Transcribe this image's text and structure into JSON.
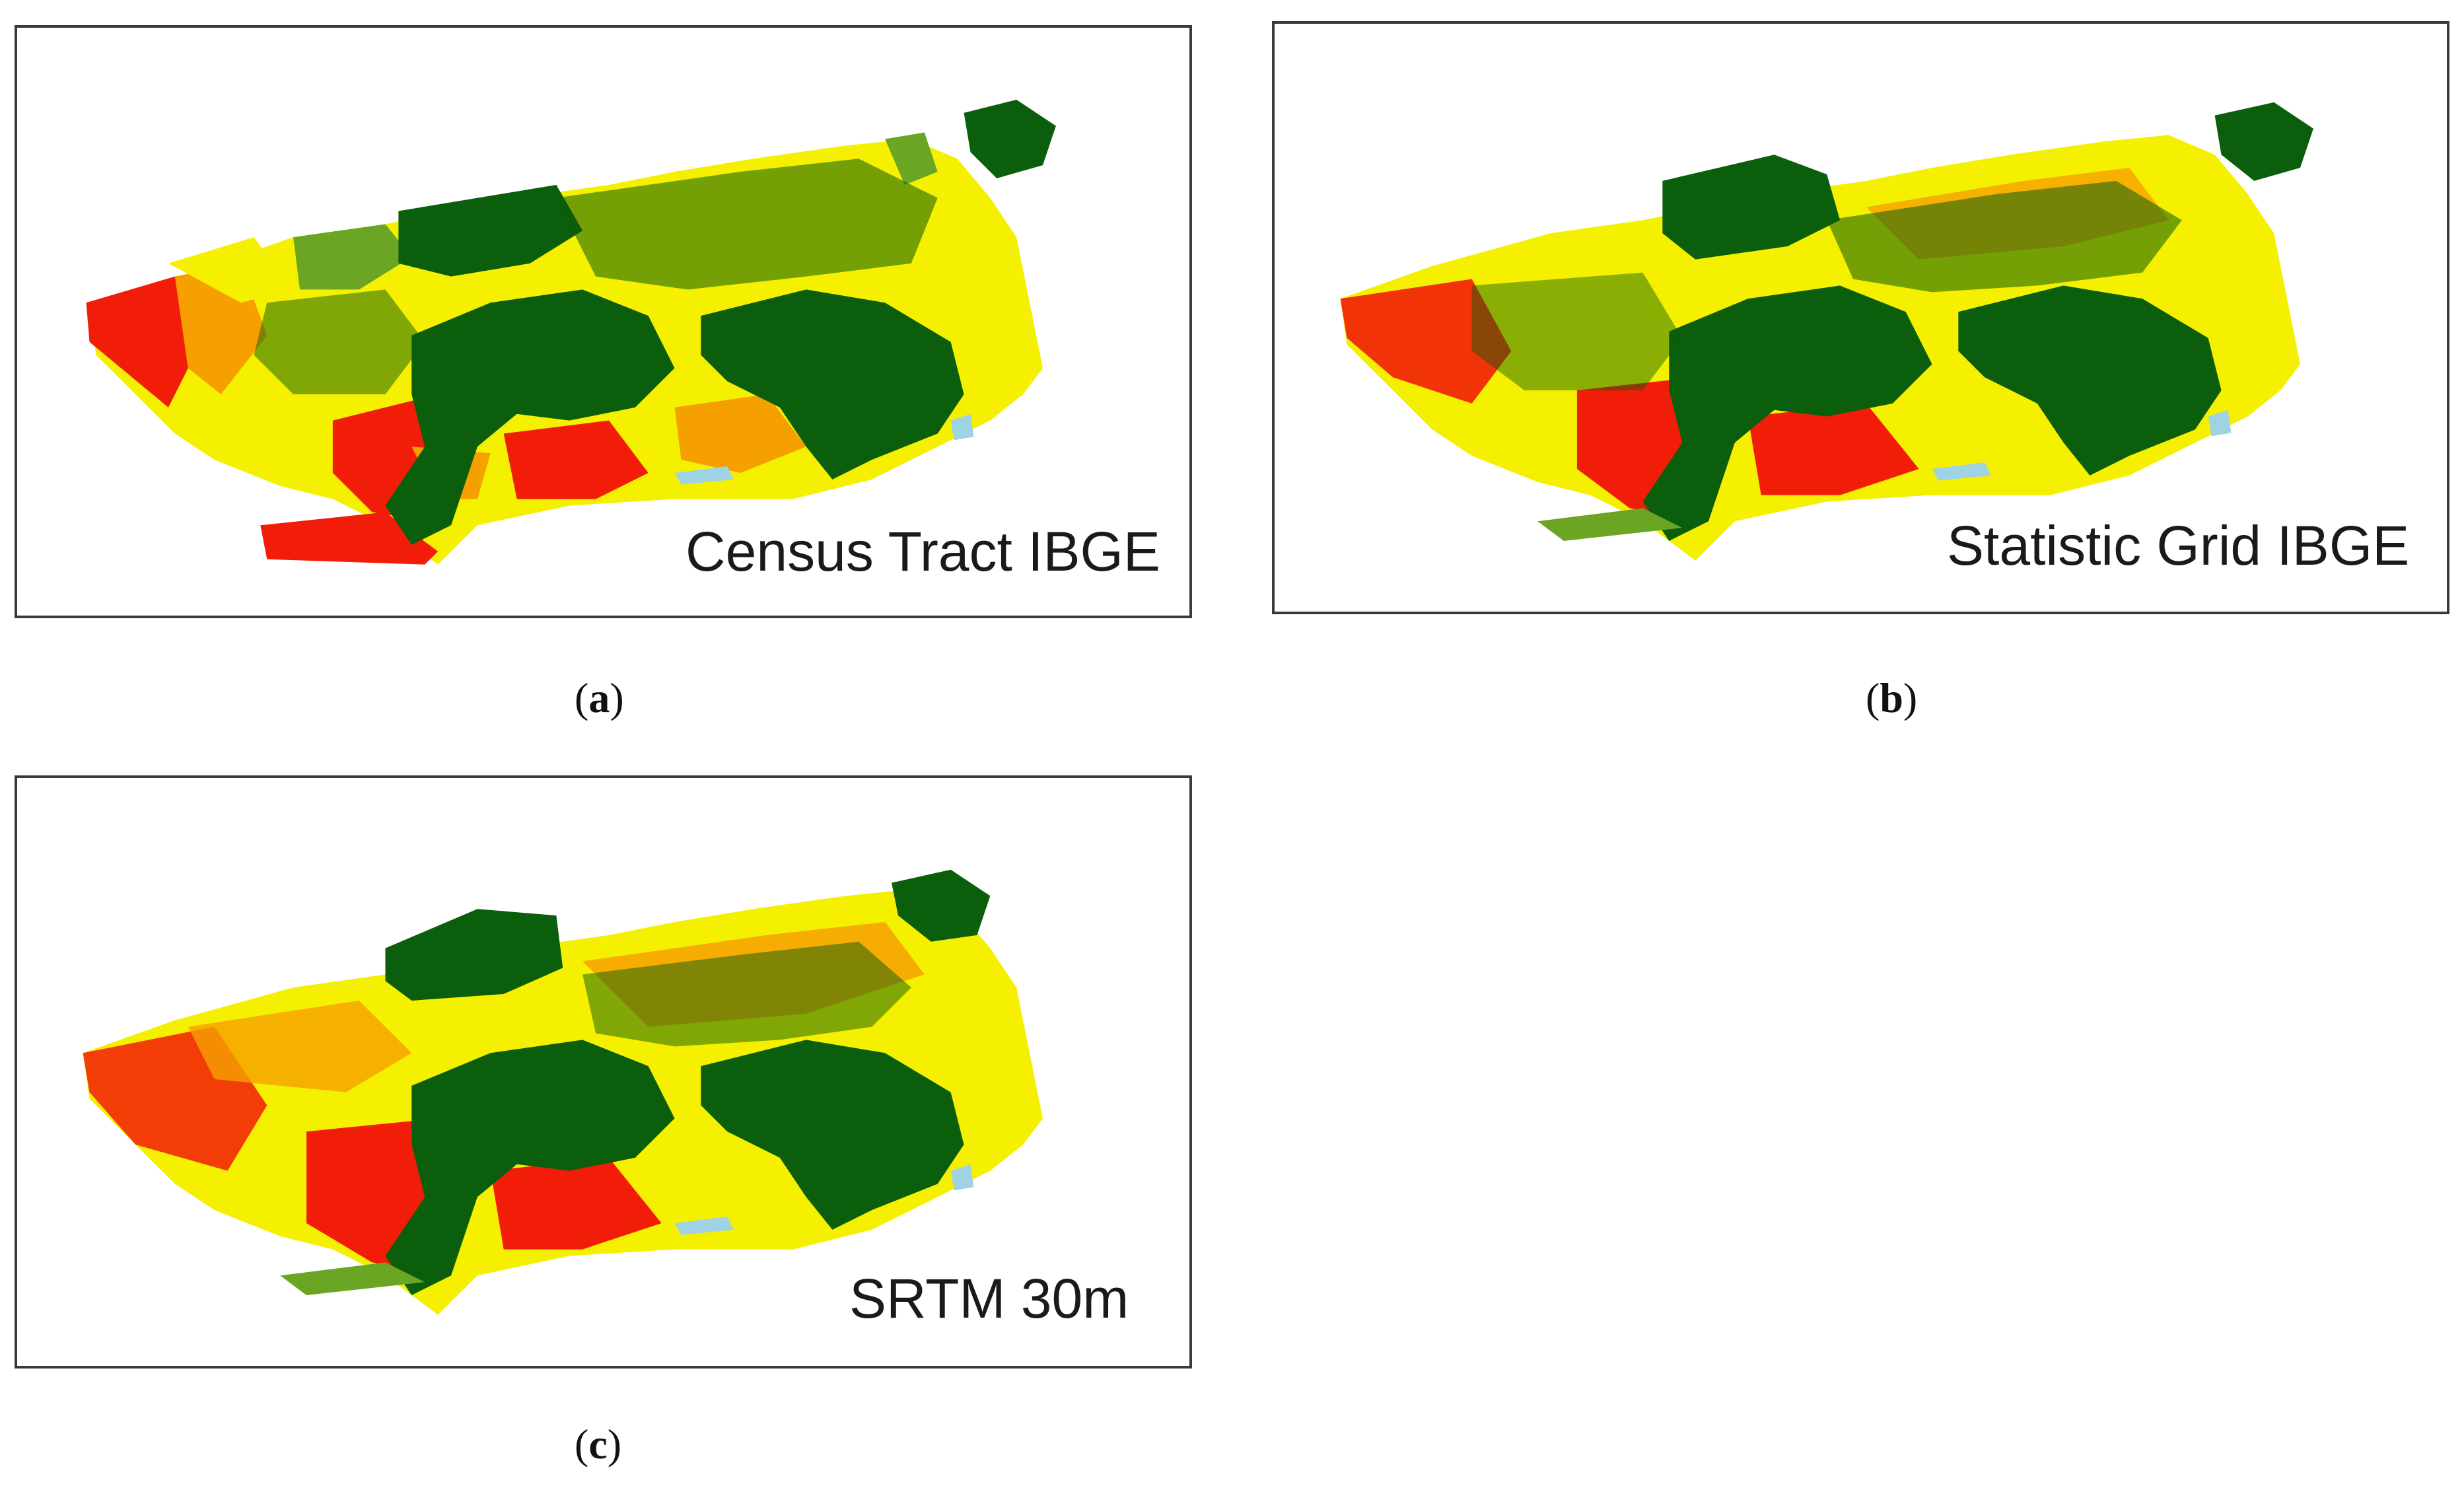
{
  "panels": [
    {
      "id": "a",
      "map_label": "Census Tract IBGE",
      "caption_letter": "a"
    },
    {
      "id": "b",
      "map_label": "Statistic Grid IBGE",
      "caption_letter": "b"
    },
    {
      "id": "c",
      "map_label": "SRTM 30m",
      "caption_letter": "c"
    }
  ],
  "colors": {
    "dark_green": "#0b5e0b",
    "light_green": "#6aa524",
    "yellow": "#f4f000",
    "orange": "#f6a000",
    "red": "#f21d08",
    "light_blue": "#9fd3e4"
  }
}
